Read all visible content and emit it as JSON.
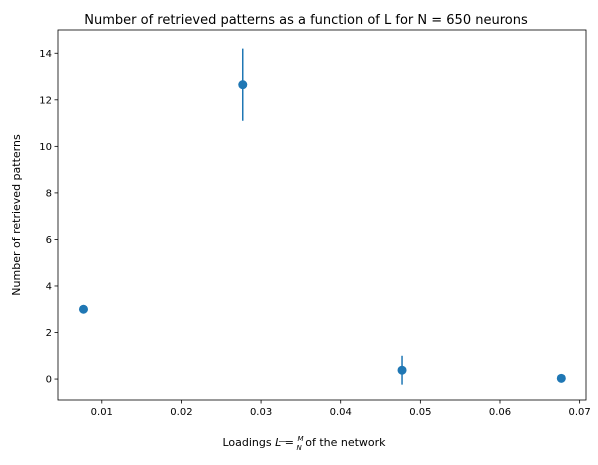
{
  "chart_data": {
    "type": "scatter",
    "title": "Number of retrieved patterns as a function of L for N = 650 neurons",
    "xlabel_prefix": "Loadings ",
    "xlabel_var": "L",
    "xlabel_eq": " = ",
    "xlabel_num": "M",
    "xlabel_den": "N",
    "xlabel_suffix": " of the network",
    "ylabel": "Number of retrieved patterns",
    "xlim": [
      0.0045,
      0.0708
    ],
    "ylim": [
      -0.9,
      15.0
    ],
    "x_ticks": [
      0.01,
      0.02,
      0.03,
      0.04,
      0.05,
      0.06,
      0.07
    ],
    "x_tick_labels": [
      "0.01",
      "0.02",
      "0.03",
      "0.04",
      "0.05",
      "0.06",
      "0.07"
    ],
    "y_ticks": [
      0,
      2,
      4,
      6,
      8,
      10,
      12,
      14
    ],
    "y_tick_labels": [
      "0",
      "2",
      "4",
      "6",
      "8",
      "10",
      "12",
      "14"
    ],
    "grid": false,
    "color": "#1f77b4",
    "points": [
      {
        "x": 0.0077,
        "y": 3.0,
        "err": 0.0
      },
      {
        "x": 0.0277,
        "y": 12.65,
        "err": 1.55
      },
      {
        "x": 0.0477,
        "y": 0.38,
        "err": 0.62
      },
      {
        "x": 0.0677,
        "y": 0.03,
        "err": 0.0
      }
    ]
  }
}
